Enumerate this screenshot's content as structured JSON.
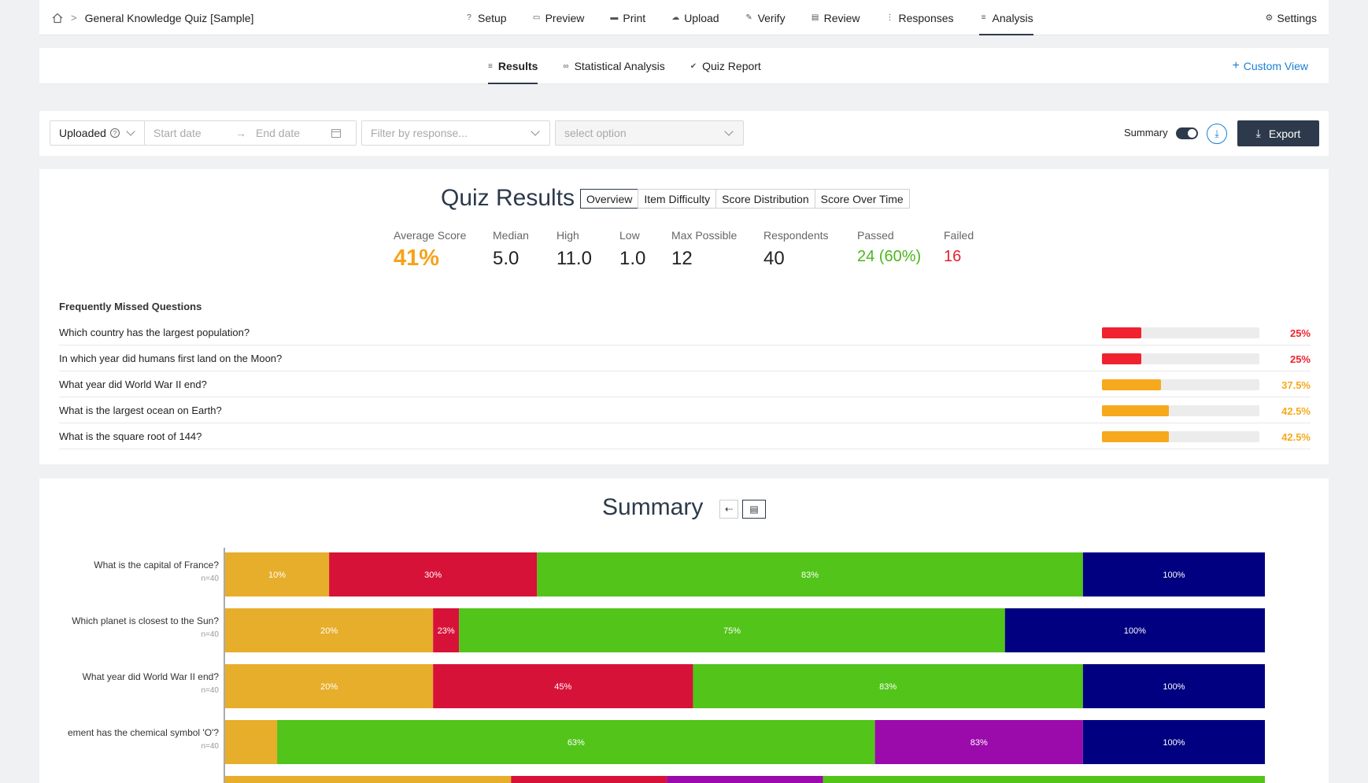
{
  "breadcrumb": {
    "home_icon": "home-icon",
    "separator": ">",
    "title": "General Knowledge Quiz [Sample]"
  },
  "nav": {
    "tabs": [
      {
        "label": "Setup",
        "icon": "question-circle-icon"
      },
      {
        "label": "Preview",
        "icon": "preview-icon"
      },
      {
        "label": "Print",
        "icon": "printer-icon"
      },
      {
        "label": "Upload",
        "icon": "upload-cloud-icon"
      },
      {
        "label": "Verify",
        "icon": "user-edit-icon"
      },
      {
        "label": "Review",
        "icon": "review-icon"
      },
      {
        "label": "Responses",
        "icon": "list-icon"
      },
      {
        "label": "Analysis",
        "icon": "chart-list-icon"
      }
    ],
    "active": "Analysis",
    "settings_label": "Settings"
  },
  "subnav": {
    "tabs": [
      {
        "label": "Results",
        "icon": "list-icon"
      },
      {
        "label": "Statistical Analysis",
        "icon": "binoculars-icon"
      },
      {
        "label": "Quiz Report",
        "icon": "check-circle-icon"
      }
    ],
    "active": "Results",
    "custom_view_label": "Custom View"
  },
  "filters": {
    "source_value": "Uploaded",
    "start_date_placeholder": "Start date",
    "date_arrow": "→",
    "end_date_placeholder": "End date",
    "response_placeholder": "Filter by response...",
    "option_placeholder": "select option",
    "summary_label": "Summary",
    "summary_toggle_on": true,
    "export_label": "Export"
  },
  "quiz_results": {
    "title": "Quiz Results",
    "view_tabs": [
      "Overview",
      "Item Difficulty",
      "Score Distribution",
      "Score Over Time"
    ],
    "active_view": "Overview",
    "stats": [
      {
        "label": "Average Score",
        "value": "41%"
      },
      {
        "label": "Median",
        "value": "5.0"
      },
      {
        "label": "High",
        "value": "11.0"
      },
      {
        "label": "Low",
        "value": "1.0"
      },
      {
        "label": "Max Possible",
        "value": "12"
      },
      {
        "label": "Respondents",
        "value": "40"
      },
      {
        "label": "Passed",
        "value": "24 (60%)"
      },
      {
        "label": "Failed",
        "value": "16"
      }
    ],
    "frequently_missed_title": "Frequently Missed Questions",
    "frequently_missed": [
      {
        "question": "Which country has the largest population?",
        "pct_label": "25%",
        "pct": 25,
        "color": "#f0222f"
      },
      {
        "question": "In which year did humans first land on the Moon?",
        "pct_label": "25%",
        "pct": 25,
        "color": "#f0222f"
      },
      {
        "question": "What year did World War II end?",
        "pct_label": "37.5%",
        "pct": 37.5,
        "color": "#f6a91c"
      },
      {
        "question": "What is the largest ocean on Earth?",
        "pct_label": "42.5%",
        "pct": 42.5,
        "color": "#f6a91c"
      },
      {
        "question": "What is the square root of 144?",
        "pct_label": "42.5%",
        "pct": 42.5,
        "color": "#f6a91c"
      }
    ]
  },
  "summary": {
    "title": "Summary",
    "buttons": [
      "back-arrow-icon",
      "bar-chart-icon"
    ]
  },
  "chart_data": {
    "type": "bar",
    "orientation": "horizontal-stacked",
    "categories": [
      {
        "label": "What is the capital of France?",
        "n": "n=40"
      },
      {
        "label": "Which planet is closest to the Sun?",
        "n": "n=40"
      },
      {
        "label": "What year did World War II end?",
        "n": "n=40"
      },
      {
        "label": "ement has the chemical symbol 'O'?",
        "n": "n=40"
      },
      {
        "label": "",
        "n": ""
      }
    ],
    "rows": [
      {
        "segments": [
          {
            "end": 10,
            "label": "10%",
            "color": "#e7ae2c"
          },
          {
            "end": 30,
            "label": "30%",
            "color": "#d71238"
          },
          {
            "end": 82.5,
            "label": "83%",
            "color": "#52c41a"
          },
          {
            "end": 100,
            "label": "100%",
            "color": "#000080"
          }
        ]
      },
      {
        "segments": [
          {
            "end": 20,
            "label": "20%",
            "color": "#e7ae2c"
          },
          {
            "end": 22.5,
            "label": "23%",
            "color": "#d71238"
          },
          {
            "end": 75,
            "label": "75%",
            "color": "#52c41a"
          },
          {
            "end": 100,
            "label": "100%",
            "color": "#000080"
          }
        ]
      },
      {
        "segments": [
          {
            "end": 20,
            "label": "20%",
            "color": "#e7ae2c"
          },
          {
            "end": 45,
            "label": "45%",
            "color": "#d71238"
          },
          {
            "end": 82.5,
            "label": "83%",
            "color": "#52c41a"
          },
          {
            "end": 100,
            "label": "100%",
            "color": "#000080"
          }
        ]
      },
      {
        "segments": [
          {
            "end": 5,
            "label": "",
            "color": "#e7ae2c"
          },
          {
            "end": 62.5,
            "label": "63%",
            "color": "#52c41a"
          },
          {
            "end": 82.5,
            "label": "83%",
            "color": "#9b0aaa"
          },
          {
            "end": 100,
            "label": "100%",
            "color": "#000080"
          }
        ]
      },
      {
        "segments": [
          {
            "end": 27.5,
            "label": "",
            "color": "#e7ae2c"
          },
          {
            "end": 42.5,
            "label": "",
            "color": "#d71238"
          },
          {
            "end": 57.5,
            "label": "",
            "color": "#9b0aaa"
          },
          {
            "end": 100,
            "label": "",
            "color": "#52c41a"
          }
        ]
      }
    ],
    "xlim": [
      0,
      100
    ]
  },
  "colors": {
    "accent": "#1a7fd4",
    "dark": "#2d3a4b",
    "orange": "#f5a31a",
    "green": "#4cb51e",
    "red": "#e5212d"
  }
}
